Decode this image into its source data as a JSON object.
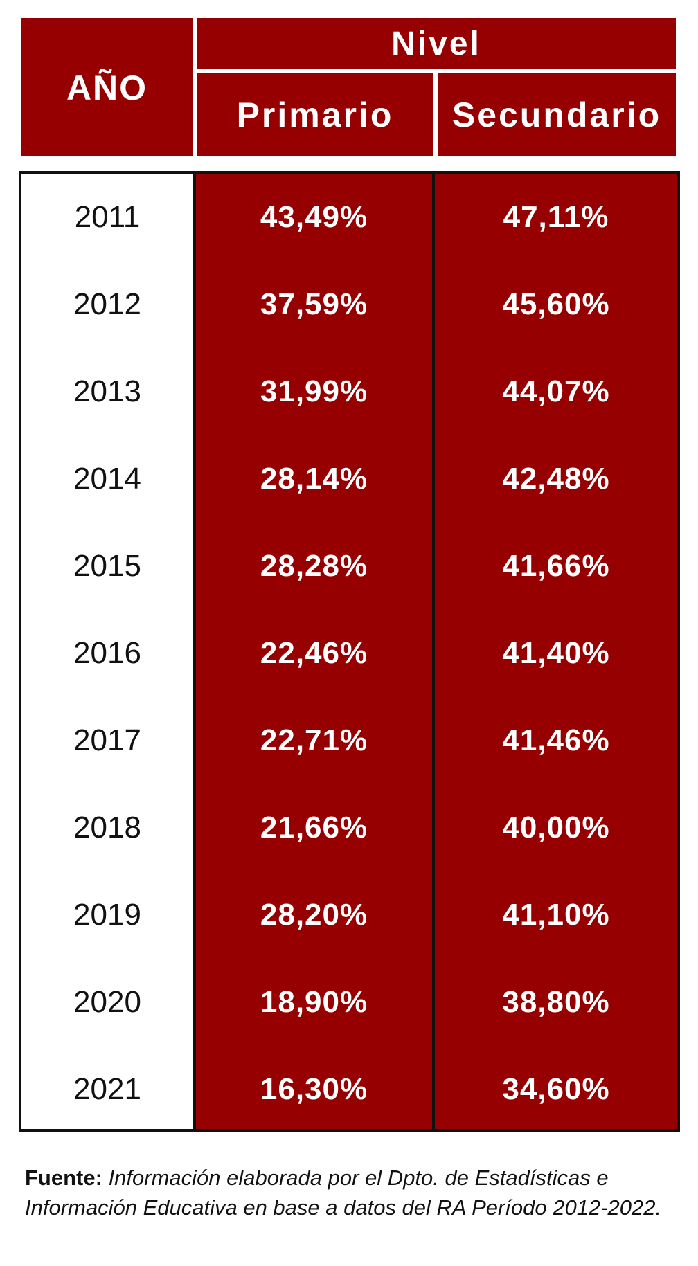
{
  "chart_data": {
    "type": "table",
    "header": {
      "year_label": "AÑO",
      "group_label": "Nivel",
      "columns": [
        "Primario",
        "Secundario"
      ]
    },
    "rows": [
      {
        "year": "2011",
        "primario": "43,49%",
        "secundario": "47,11%"
      },
      {
        "year": "2012",
        "primario": "37,59%",
        "secundario": "45,60%"
      },
      {
        "year": "2013",
        "primario": "31,99%",
        "secundario": "44,07%"
      },
      {
        "year": "2014",
        "primario": "28,14%",
        "secundario": "42,48%"
      },
      {
        "year": "2015",
        "primario": "28,28%",
        "secundario": "41,66%"
      },
      {
        "year": "2016",
        "primario": "22,46%",
        "secundario": "41,40%"
      },
      {
        "year": "2017",
        "primario": "22,71%",
        "secundario": "41,46%"
      },
      {
        "year": "2018",
        "primario": "21,66%",
        "secundario": "40,00%"
      },
      {
        "year": "2019",
        "primario": "28,20%",
        "secundario": "41,10%"
      },
      {
        "year": "2020",
        "primario": "18,90%",
        "secundario": "38,80%"
      },
      {
        "year": "2021",
        "primario": "16,30%",
        "secundario": "34,60%"
      }
    ]
  },
  "footer": {
    "label": "Fuente:",
    "text": "Información elaborada por el Dpto. de Estadísticas e Información Educativa en base a datos del RA Período 2012-2022."
  },
  "colors": {
    "accent": "#960000",
    "border": "#111111",
    "header_text": "#ffffff"
  }
}
